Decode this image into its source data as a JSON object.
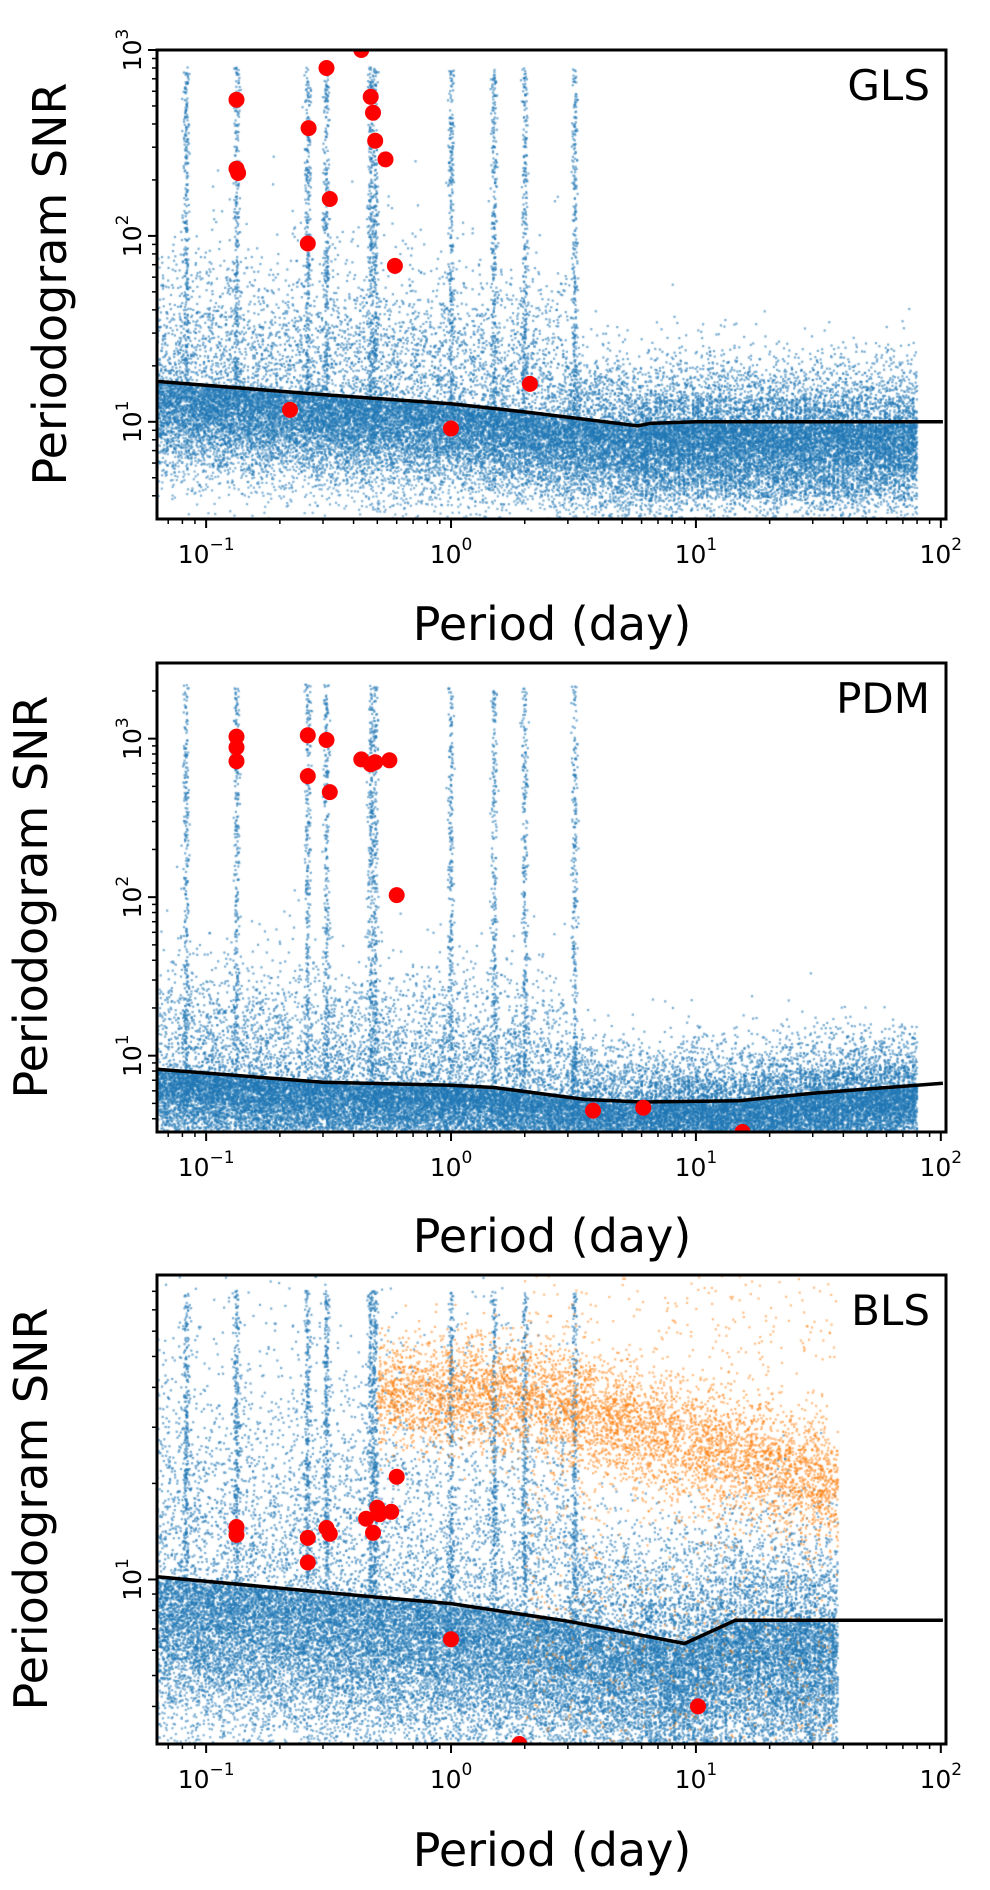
{
  "chart_data": [
    {
      "type": "scatter",
      "title": "GLS",
      "xlabel": "Period (day)",
      "ylabel": "Periodogram SNR",
      "xscale": "log",
      "yscale": "log",
      "xlim": [
        0.063,
        105
      ],
      "ylim": [
        3.0,
        1000
      ],
      "x_ticks": [
        {
          "base": "10",
          "exp": "−1",
          "value": 0.1
        },
        {
          "base": "10",
          "exp": "0",
          "value": 1
        },
        {
          "base": "10",
          "exp": "1",
          "value": 10
        },
        {
          "base": "10",
          "exp": "2",
          "value": 100
        }
      ],
      "y_ticks": [
        {
          "base": "10",
          "exp": "1",
          "value": 10
        },
        {
          "base": "10",
          "exp": "2",
          "value": 100
        },
        {
          "base": "10",
          "exp": "3",
          "value": 1000
        }
      ],
      "grid": false,
      "background_color": "#1f77b4",
      "highlight_color": "#ff0000",
      "threshold_color": "#000000",
      "threshold": {
        "x": [
          0.063,
          0.3,
          1.0,
          2.0,
          5.8,
          6.5,
          10,
          102
        ],
        "y": [
          16.5,
          14.0,
          12.5,
          11.3,
          9.5,
          9.8,
          10.0,
          10.0
        ]
      },
      "highlighted": {
        "x": [
          0.133,
          0.133,
          0.135,
          0.22,
          0.26,
          0.262,
          0.31,
          0.32,
          0.43,
          0.47,
          0.48,
          0.49,
          0.54,
          0.59,
          1.0,
          2.1
        ],
        "y": [
          540,
          230,
          218,
          11.6,
          91,
          380,
          800,
          158,
          1000,
          560,
          460,
          325,
          258,
          69,
          9.2,
          16
        ]
      }
    },
    {
      "type": "scatter",
      "title": "PDM",
      "xlabel": "Period (day)",
      "ylabel": "Periodogram SNR",
      "xscale": "log",
      "yscale": "log",
      "xlim": [
        0.063,
        105
      ],
      "ylim": [
        3.3,
        3000
      ],
      "x_ticks": [
        {
          "base": "10",
          "exp": "−1",
          "value": 0.1
        },
        {
          "base": "10",
          "exp": "0",
          "value": 1
        },
        {
          "base": "10",
          "exp": "1",
          "value": 10
        },
        {
          "base": "10",
          "exp": "2",
          "value": 100
        }
      ],
      "y_ticks": [
        {
          "base": "10",
          "exp": "1",
          "value": 10
        },
        {
          "base": "10",
          "exp": "2",
          "value": 100
        },
        {
          "base": "10",
          "exp": "3",
          "value": 1000
        }
      ],
      "grid": false,
      "background_color": "#1f77b4",
      "highlight_color": "#ff0000",
      "threshold_color": "#000000",
      "threshold": {
        "x": [
          0.063,
          0.3,
          1.0,
          1.5,
          3.5,
          6.0,
          15,
          30,
          102
        ],
        "y": [
          8.2,
          6.8,
          6.5,
          6.3,
          5.3,
          5.1,
          5.2,
          5.8,
          6.7
        ]
      },
      "highlighted": {
        "x": [
          0.133,
          0.133,
          0.133,
          0.26,
          0.26,
          0.31,
          0.32,
          0.43,
          0.47,
          0.49,
          0.56,
          0.6,
          3.8,
          6.1,
          15.5
        ],
        "y": [
          1030,
          880,
          720,
          1050,
          580,
          980,
          460,
          740,
          690,
          710,
          730,
          103,
          4.5,
          4.7,
          3.3
        ]
      }
    },
    {
      "type": "scatter",
      "title": "BLS",
      "xlabel": "Period (day)",
      "ylabel": "Periodogram SNR",
      "xscale": "log",
      "yscale": "log",
      "xlim": [
        0.063,
        105
      ],
      "ylim": [
        3.05,
        90
      ],
      "x_ticks": [
        {
          "base": "10",
          "exp": "−1",
          "value": 0.1
        },
        {
          "base": "10",
          "exp": "0",
          "value": 1
        },
        {
          "base": "10",
          "exp": "1",
          "value": 10
        },
        {
          "base": "10",
          "exp": "2",
          "value": 100
        }
      ],
      "y_ticks": [
        {
          "base": "10",
          "exp": "1",
          "value": 10
        }
      ],
      "grid": false,
      "background_color": "#1f77b4",
      "secondary_color": "#ff7f0e",
      "highlight_color": "#ff0000",
      "threshold_color": "#000000",
      "threshold": {
        "x": [
          0.063,
          0.5,
          1.0,
          3.0,
          9.0,
          14.5,
          102
        ],
        "y": [
          10.2,
          8.8,
          8.4,
          7.4,
          6.3,
          7.45,
          7.45
        ]
      },
      "highlighted": {
        "x": [
          0.133,
          0.133,
          0.26,
          0.26,
          0.31,
          0.32,
          0.45,
          0.48,
          0.5,
          0.51,
          0.57,
          0.6,
          1.0,
          10.2,
          1.9
        ],
        "y": [
          14.6,
          13.8,
          13.5,
          11.3,
          14.5,
          13.9,
          15.5,
          14.0,
          16.8,
          16.0,
          16.3,
          21.0,
          6.5,
          4.0,
          3.05
        ]
      }
    }
  ]
}
